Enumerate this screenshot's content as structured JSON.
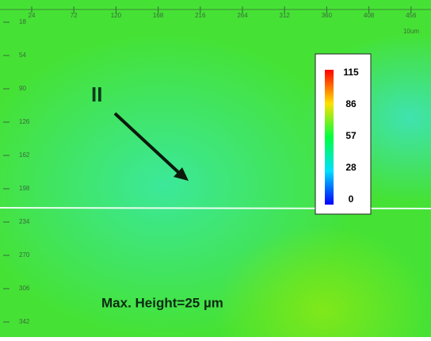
{
  "axes": {
    "top": {
      "ticks": [
        "24",
        "72",
        "120",
        "168",
        "216",
        "264",
        "312",
        "360",
        "408",
        "456"
      ],
      "unit": "10um"
    },
    "left": {
      "ticks": [
        "18",
        "54",
        "90",
        "126",
        "162",
        "198",
        "234",
        "270",
        "306",
        "342"
      ]
    }
  },
  "colorbar": {
    "labels": [
      "115",
      "86",
      "57",
      "28",
      "0"
    ]
  },
  "annotation": "II",
  "caption": "Max. Height=25 µm"
}
